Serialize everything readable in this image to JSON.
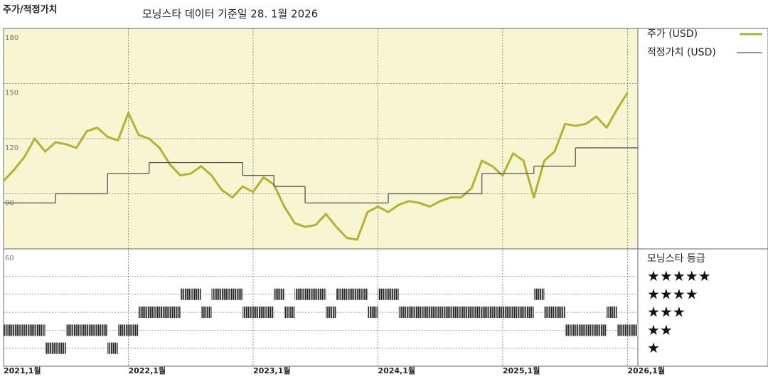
{
  "chart_data": {
    "type": "line",
    "title": "주가/적정가치",
    "subtitle": "모닝스타 데이터 기준일 28. 1월 2026",
    "x": [
      "2021-01",
      "2021-02",
      "2021-03",
      "2021-04",
      "2021-05",
      "2021-06",
      "2021-07",
      "2021-08",
      "2021-09",
      "2021-10",
      "2021-11",
      "2021-12",
      "2022-01",
      "2022-02",
      "2022-03",
      "2022-04",
      "2022-05",
      "2022-06",
      "2022-07",
      "2022-08",
      "2022-09",
      "2022-10",
      "2022-11",
      "2022-12",
      "2023-01",
      "2023-02",
      "2023-03",
      "2023-04",
      "2023-05",
      "2023-06",
      "2023-07",
      "2023-08",
      "2023-09",
      "2023-10",
      "2023-11",
      "2023-12",
      "2024-01",
      "2024-02",
      "2024-03",
      "2024-04",
      "2024-05",
      "2024-06",
      "2024-07",
      "2024-08",
      "2024-09",
      "2024-10",
      "2024-11",
      "2024-12",
      "2025-01",
      "2025-02",
      "2025-03",
      "2025-04",
      "2025-05",
      "2025-06",
      "2025-07",
      "2025-08",
      "2025-09",
      "2025-10",
      "2025-11",
      "2025-12",
      "2026-01"
    ],
    "xlim": [
      "2021-01",
      "2026-02"
    ],
    "xticks": [
      {
        "value": "2021-01",
        "label": "2021,1월"
      },
      {
        "value": "2022-01",
        "label": "2022,1월"
      },
      {
        "value": "2023-01",
        "label": "2023,1월"
      },
      {
        "value": "2024-01",
        "label": "2024,1월"
      },
      {
        "value": "2025-01",
        "label": "2025,1월"
      },
      {
        "value": "2026-01",
        "label": "2026,1월"
      }
    ],
    "ylim": [
      60,
      180
    ],
    "yticks": [
      60,
      90,
      120,
      150,
      180
    ],
    "grid": true,
    "series": [
      {
        "name": "주가 (USD)",
        "color": "#b3b32e",
        "values": [
          97,
          103,
          110,
          120,
          113,
          118,
          117,
          115,
          124,
          126,
          121,
          119,
          134,
          122,
          120,
          115,
          106,
          100,
          101,
          105,
          100,
          92,
          88,
          94,
          91,
          99,
          95,
          83,
          74,
          72,
          73,
          79,
          72,
          66,
          65,
          80,
          83,
          80,
          84,
          86,
          85,
          83,
          86,
          88,
          88,
          93,
          108,
          105,
          100,
          112,
          108,
          88,
          108,
          113,
          128,
          127,
          128,
          132,
          126,
          136,
          145
        ]
      },
      {
        "name": "적정가치 (USD)",
        "color": "#555555",
        "step": true,
        "values": [
          85,
          85,
          85,
          85,
          85,
          90,
          90,
          90,
          90,
          90,
          101,
          101,
          101,
          101,
          107,
          107,
          107,
          107,
          107,
          107,
          107,
          107,
          107,
          100,
          100,
          100,
          94,
          94,
          94,
          85,
          85,
          85,
          85,
          85,
          85,
          85,
          85,
          90,
          90,
          90,
          90,
          90,
          90,
          90,
          90,
          90,
          101,
          101,
          101,
          101,
          101,
          105,
          105,
          105,
          105,
          115,
          115,
          115,
          115,
          115,
          115
        ]
      }
    ],
    "ratings": {
      "title": "모닝스타 등급",
      "color": "#222222",
      "levels": [
        {
          "value": 5,
          "label": "★★★★★"
        },
        {
          "value": 4,
          "label": "★★★★"
        },
        {
          "value": 3,
          "label": "★★★"
        },
        {
          "value": 2,
          "label": "★★"
        },
        {
          "value": 1,
          "label": "★"
        }
      ],
      "values": [
        2,
        2,
        2,
        2,
        1,
        1,
        2,
        2,
        2,
        2,
        1,
        2,
        2,
        3,
        3,
        3,
        3,
        4,
        4,
        3,
        4,
        4,
        4,
        3,
        3,
        3,
        4,
        3,
        4,
        4,
        4,
        3,
        4,
        4,
        4,
        3,
        4,
        4,
        3,
        3,
        3,
        3,
        3,
        3,
        3,
        3,
        3,
        3,
        3,
        3,
        3,
        4,
        3,
        3,
        2,
        2,
        2,
        2,
        3,
        2,
        2
      ]
    }
  }
}
